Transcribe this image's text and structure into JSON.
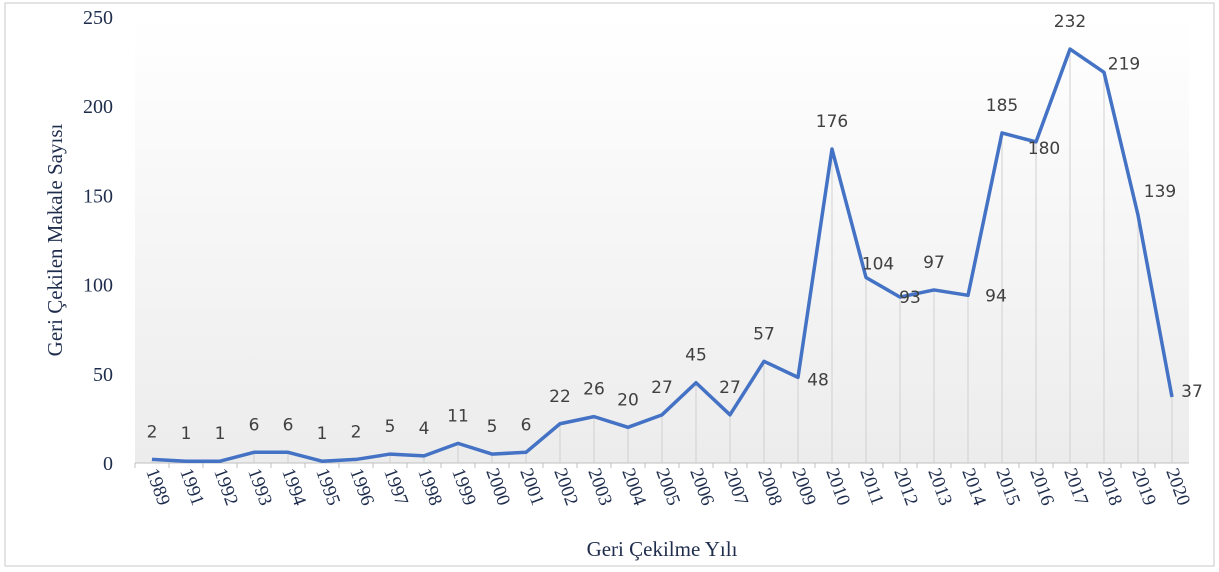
{
  "chart_data": {
    "type": "line",
    "y_label": "Geri Çekilen Makale Sayısı",
    "x_label": "Geri Çekilme Yılı",
    "categories": [
      "1989",
      "1991",
      "1992",
      "1993",
      "1994",
      "1995",
      "1996",
      "1997",
      "1998",
      "1999",
      "2000",
      "2001",
      "2002",
      "2003",
      "2004",
      "2005",
      "2006",
      "2007",
      "2008",
      "2009",
      "2010",
      "2011",
      "2012",
      "2013",
      "2014",
      "2015",
      "2016",
      "2017",
      "2018",
      "2019",
      "2020"
    ],
    "series": [
      {
        "name": "Geri Çekilen Makale Sayısı",
        "color": "#4472c4",
        "values": [
          2,
          1,
          1,
          6,
          6,
          1,
          2,
          5,
          4,
          11,
          5,
          6,
          22,
          26,
          20,
          27,
          45,
          27,
          57,
          48,
          176,
          104,
          93,
          97,
          94,
          185,
          180,
          232,
          219,
          139,
          37
        ]
      }
    ],
    "ylim": [
      0,
      250
    ],
    "yticks": [
      0,
      50,
      100,
      150,
      200,
      250
    ]
  }
}
